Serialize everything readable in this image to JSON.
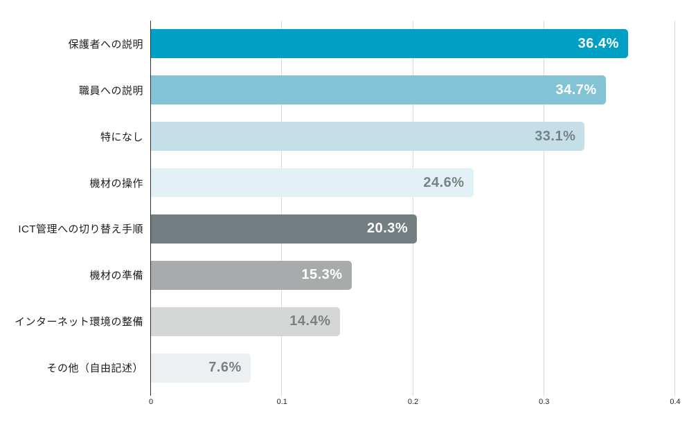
{
  "chart_data": {
    "type": "bar",
    "orientation": "horizontal",
    "title": "",
    "xlabel": "",
    "ylabel": "",
    "categories": [
      "保護者への説明",
      "職員への説明",
      "特になし",
      "機材の操作",
      "ICT管理への切り替え手順",
      "機材の準備",
      "インターネット環境の整備",
      "その他（自由記述）"
    ],
    "values": [
      0.364,
      0.347,
      0.331,
      0.246,
      0.203,
      0.153,
      0.144,
      0.076
    ],
    "value_labels": [
      "36.4%",
      "34.7%",
      "33.1%",
      "24.6%",
      "20.3%",
      "15.3%",
      "14.4%",
      "7.6%"
    ],
    "bar_colors": [
      "#009fc4",
      "#82c4d5",
      "#c4dfe8",
      "#e2f1f6",
      "#737e80",
      "#a8abac",
      "#d5d6d6",
      "#ecf0f2"
    ],
    "value_label_colors": [
      "#ffffff",
      "#ffffff",
      "#778284",
      "#778284",
      "#ffffff",
      "#ffffff",
      "#778284",
      "#778284"
    ],
    "xlim": [
      0,
      0.4
    ],
    "x_ticks": [
      "0",
      "0.1",
      "0.2",
      "0.3",
      "0.4"
    ],
    "grid": "vertical-gridlines-on",
    "legend": "none"
  },
  "colors": {
    "background": "#ffffff",
    "axis_line": "#2e2e2e",
    "gridline": "#d8d8d8",
    "category_label": "#1c1c1c",
    "tick_label": "#1f1f1f"
  }
}
